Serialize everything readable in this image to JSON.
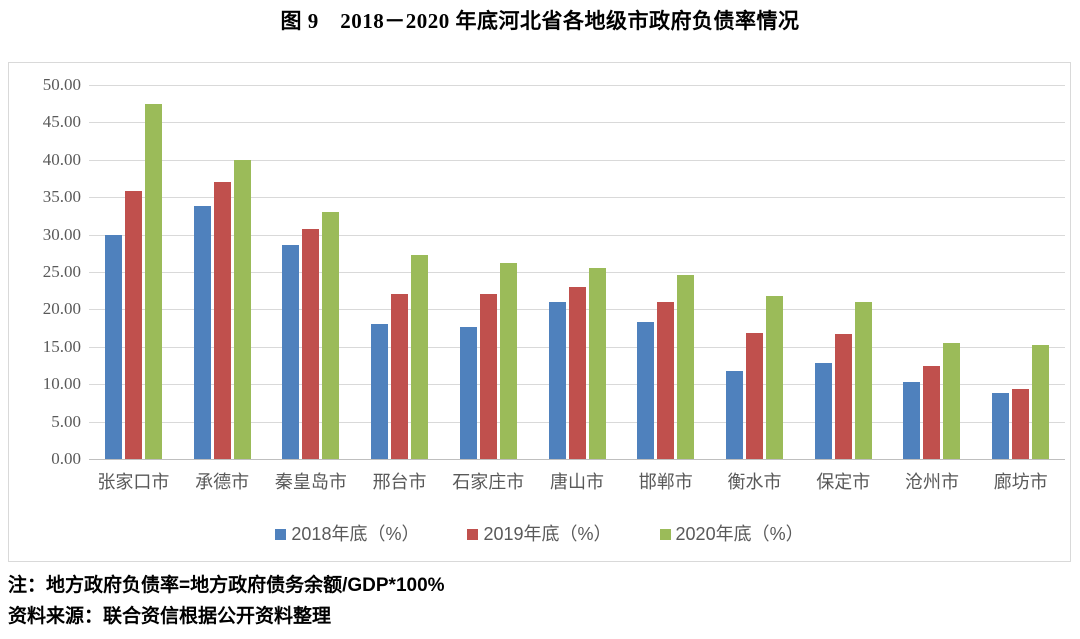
{
  "title": "图 9　2018－2020 年底河北省各地级市政府负债率情况",
  "notes": {
    "formula": "注：地方政府负债率=地方政府债务余额/GDP*100%",
    "source": "资料来源：联合资信根据公开资料整理"
  },
  "colors": {
    "series_2018": "#4F81BD",
    "series_2019": "#C0504D",
    "series_2020": "#9BBB59",
    "gridline": "#D9D9D9",
    "axis_line": "#BFBFBF",
    "axis_text": "#595959",
    "frame_border": "#D9D9D9"
  },
  "chart_data": {
    "type": "bar",
    "title": "图 9　2018－2020 年底河北省各地级市政府负债率情况",
    "categories": [
      "张家口市",
      "承德市",
      "秦皇岛市",
      "邢台市",
      "石家庄市",
      "唐山市",
      "邯郸市",
      "衡水市",
      "保定市",
      "沧州市",
      "廊坊市"
    ],
    "series": [
      {
        "name": "2018年底（%）",
        "color": "#4F81BD",
        "values": [
          30.0,
          33.8,
          28.6,
          18.0,
          17.7,
          21.0,
          18.3,
          11.8,
          12.8,
          10.3,
          8.8
        ]
      },
      {
        "name": "2019年底（%）",
        "color": "#C0504D",
        "values": [
          35.9,
          37.0,
          30.7,
          22.1,
          22.0,
          23.0,
          21.0,
          16.8,
          16.7,
          12.5,
          9.3
        ]
      },
      {
        "name": "2020年底（%）",
        "color": "#9BBB59",
        "values": [
          47.5,
          40.0,
          33.0,
          27.3,
          26.2,
          25.5,
          24.6,
          21.8,
          21.0,
          15.5,
          15.2
        ]
      }
    ],
    "xlabel": "",
    "ylabel": "",
    "ylim": [
      0,
      50
    ],
    "ytick_step": 5,
    "ytick_labels": [
      "0.00",
      "5.00",
      "10.00",
      "15.00",
      "20.00",
      "25.00",
      "30.00",
      "35.00",
      "40.00",
      "45.00",
      "50.00"
    ],
    "grid": true,
    "legend_position": "bottom"
  }
}
